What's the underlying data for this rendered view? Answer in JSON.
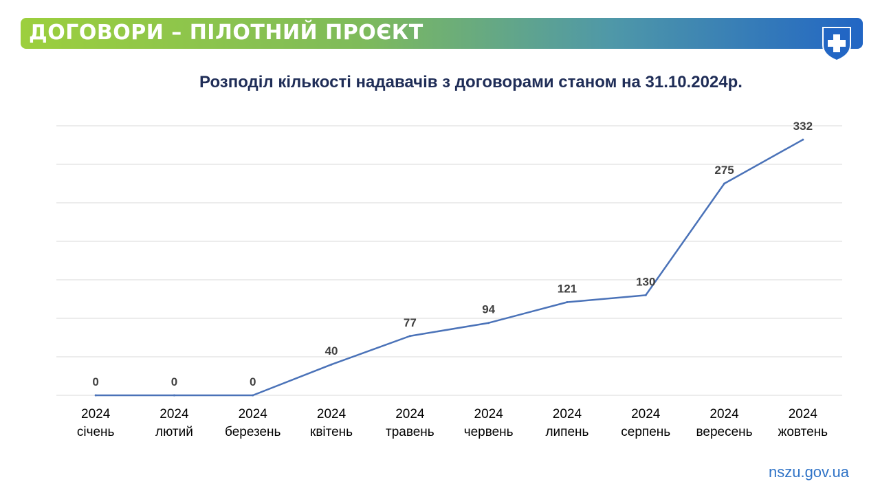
{
  "header": {
    "title": "ДОГОВОРИ – ПІЛОТНИЙ ПРОЄКТ"
  },
  "logo": {
    "icon": "medical-cross-shield-icon",
    "color": "#2266c4"
  },
  "footer": {
    "site": "nszu.gov.ua"
  },
  "colors": {
    "line": "#4a72b8",
    "grid": "#d9d9d9",
    "title": "#1f2d57",
    "label": "#404040"
  },
  "chart_data": {
    "type": "line",
    "title": "Розподіл кількості надавачів  з договорами станом на 31.10.2024р.",
    "categories": [
      [
        "2024",
        "січень"
      ],
      [
        "2024",
        "лютий"
      ],
      [
        "2024",
        "березень"
      ],
      [
        "2024",
        "квітень"
      ],
      [
        "2024",
        "травень"
      ],
      [
        "2024",
        "червень"
      ],
      [
        "2024",
        "липень"
      ],
      [
        "2024",
        "серпень"
      ],
      [
        "2024",
        "вересень"
      ],
      [
        "2024",
        "жовтень"
      ]
    ],
    "values": [
      0,
      0,
      0,
      40,
      77,
      94,
      121,
      130,
      275,
      332
    ],
    "data_labels": [
      "0",
      "0",
      "0",
      "40",
      "77",
      "94",
      "121",
      "130",
      "275",
      "332"
    ],
    "ylim": [
      0,
      350
    ],
    "grid": true,
    "legend": "none"
  }
}
